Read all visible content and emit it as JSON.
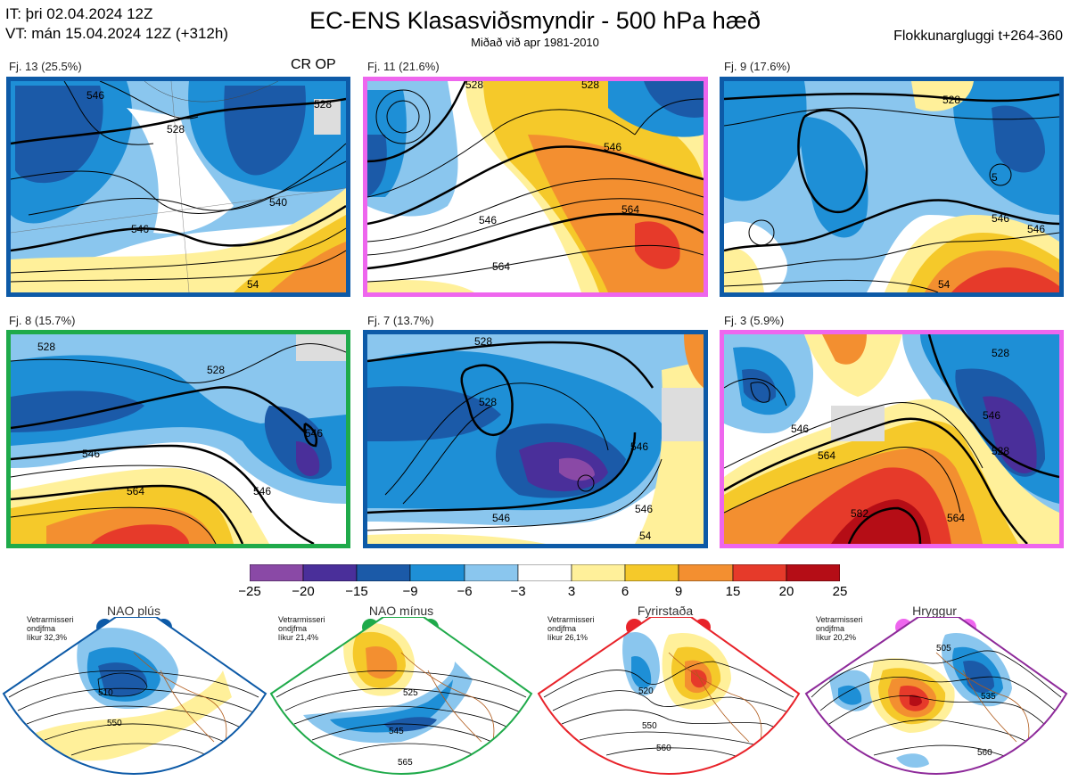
{
  "header": {
    "it_line": "IT: þri 02.04.2024 12Z",
    "vt_line": "VT: mán 15.04.2024 12Z  (+312h)",
    "title": "EC-ENS Klasasviðsmyndir - 500 hPa hæð",
    "subtitle": "Miðað við apr 1981-2010",
    "window": "Flokkunargluggi t+264-360"
  },
  "panels": [
    {
      "label": "Fj. 13 (25.5%)",
      "tag": "CR OP",
      "border": "#0d5aa7",
      "contours": [
        "528",
        "546",
        "540",
        "528",
        "546",
        "54"
      ]
    },
    {
      "label": "Fj. 11 (21.6%)",
      "tag": "",
      "border": "#ee66ee",
      "contours": [
        "528",
        "546",
        "546",
        "564",
        "564",
        "528"
      ]
    },
    {
      "label": "Fj. 9 (17.6%)",
      "tag": "",
      "border": "#0d5aa7",
      "contours": [
        "528",
        "546",
        "5",
        "546",
        "54"
      ]
    },
    {
      "label": "Fj. 8 (15.7%)",
      "tag": "",
      "border": "#1faa4a",
      "contours": [
        "528",
        "528",
        "546",
        "564",
        "546",
        "546"
      ]
    },
    {
      "label": "Fj. 7 (13.7%)",
      "tag": "",
      "border": "#0d5aa7",
      "contours": [
        "528",
        "528",
        "546",
        "546",
        "546",
        "54"
      ]
    },
    {
      "label": "Fj. 3 (5.9%)",
      "tag": "",
      "border": "#ee66ee",
      "contours": [
        "546",
        "564",
        "528",
        "546",
        "582",
        "564",
        "528"
      ]
    }
  ],
  "colorbar": {
    "ticks": [
      "−25",
      "−20",
      "−15",
      "−9",
      "−6",
      "−3",
      "3",
      "6",
      "9",
      "15",
      "20",
      "25"
    ],
    "colors": [
      "#8a49a6",
      "#4a2f9a",
      "#1b5aa8",
      "#1e8fd6",
      "#8ac6ee",
      "#ffffff",
      "#fff09a",
      "#f5c92a",
      "#f38f30",
      "#e63a2a",
      "#b50d16"
    ]
  },
  "regimes": [
    {
      "name": "NAO plús",
      "note1": "Vetrarmisseri",
      "note2": "ondjfma",
      "note3": "líkur 32,3%",
      "color": "#0d5aa7",
      "labels": [
        "510",
        "550"
      ]
    },
    {
      "name": "NAO mínus",
      "note1": "Vetrarmisseri",
      "note2": "ondjfma",
      "note3": "líkur 21,4%",
      "color": "#1faa4a",
      "labels": [
        "525",
        "545",
        "565"
      ]
    },
    {
      "name": "Fyrirstaða",
      "note1": "Vetrarmisseri",
      "note2": "ondjfma",
      "note3": "líkur 26,1%",
      "color": "#e8232a",
      "labels": [
        "520",
        "550",
        "560"
      ]
    },
    {
      "name": "Hryggur",
      "note1": "Vetrarmisseri",
      "note2": "ondjfma",
      "note3": "líkur 20,2%",
      "color": "#ee66ee",
      "labels": [
        "505",
        "535",
        "560"
      ]
    }
  ]
}
